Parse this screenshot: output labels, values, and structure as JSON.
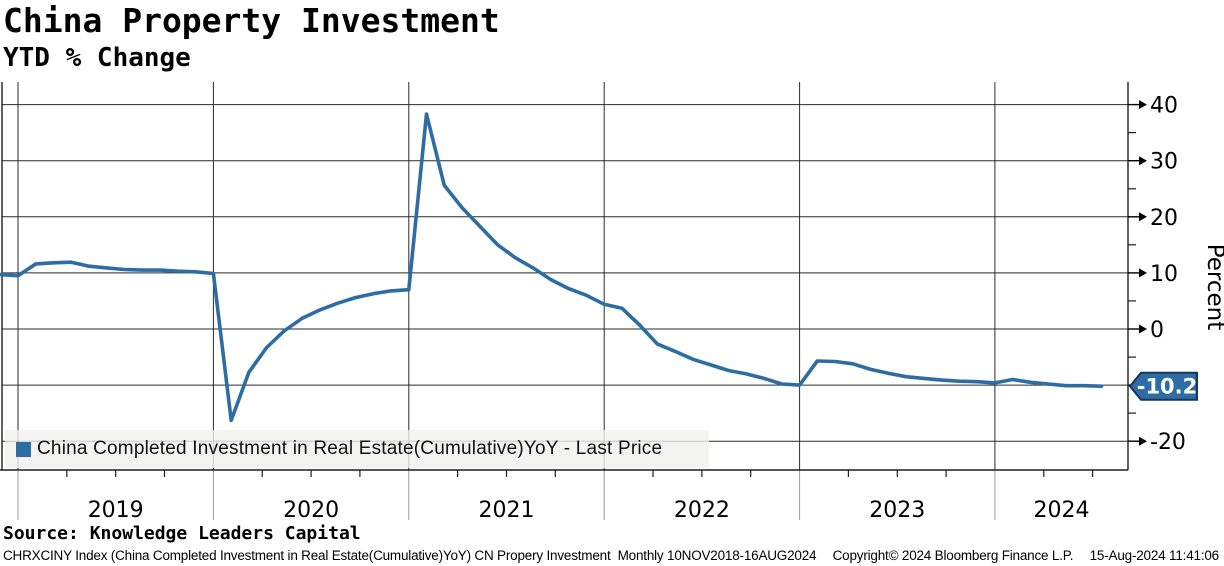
{
  "header": {
    "title": "China Property Investment",
    "subtitle": "YTD % Change"
  },
  "legend": {
    "label": "China Completed Investment in Real Estate(Cumulative)YoY - Last Price",
    "swatch_color": "#2e6da4"
  },
  "source_line": "Source: Knowledge Leaders Capital",
  "footer": {
    "left": "CHRXCINY Index (China Completed Investment in Real Estate(Cumulative)YoY) CN Propery Investment  Monthly 10NOV2018-16AUG2024",
    "copyright": "Copyright© 2024 Bloomberg Finance L.P.",
    "timestamp": "15-Aug-2024 11:41:06"
  },
  "chart_data": {
    "type": "line",
    "title": "China Property Investment",
    "subtitle": "YTD % Change",
    "ylabel": "Percent",
    "ylabel_side": "right",
    "xlabel": "",
    "grid": true,
    "legend_position": "bottom-left",
    "x_axis": {
      "year_labels": [
        "2019",
        "2020",
        "2021",
        "2022",
        "2023",
        "2024"
      ],
      "minor_ticks": "quarterly"
    },
    "y_axis": {
      "major_ticks": [
        40,
        30,
        20,
        10,
        0,
        -10,
        -20
      ],
      "minor_ticks": [
        35,
        25,
        15,
        5,
        -5,
        -15
      ],
      "ylim": [
        -25,
        44
      ]
    },
    "last_price": {
      "value": -10.2,
      "label": "-10.2",
      "fill": "#2e6da4",
      "border": "#16365c",
      "text_color": "#ffffff"
    },
    "series": [
      {
        "name": "China Completed Investment in Real Estate(Cumulative)YoY - Last Price",
        "color": "#2e6da4",
        "points": [
          [
            "Nov-2018",
            9.7
          ],
          [
            "Dec-2018",
            9.5
          ],
          [
            "Feb-2019",
            11.6
          ],
          [
            "Mar-2019",
            11.8
          ],
          [
            "Apr-2019",
            11.9
          ],
          [
            "May-2019",
            11.2
          ],
          [
            "Jun-2019",
            10.9
          ],
          [
            "Jul-2019",
            10.6
          ],
          [
            "Aug-2019",
            10.5
          ],
          [
            "Sep-2019",
            10.5
          ],
          [
            "Oct-2019",
            10.3
          ],
          [
            "Nov-2019",
            10.2
          ],
          [
            "Dec-2019",
            9.9
          ],
          [
            "Feb-2020",
            -16.3
          ],
          [
            "Mar-2020",
            -7.7
          ],
          [
            "Apr-2020",
            -3.3
          ],
          [
            "May-2020",
            -0.3
          ],
          [
            "Jun-2020",
            1.9
          ],
          [
            "Jul-2020",
            3.4
          ],
          [
            "Aug-2020",
            4.6
          ],
          [
            "Sep-2020",
            5.6
          ],
          [
            "Oct-2020",
            6.3
          ],
          [
            "Nov-2020",
            6.8
          ],
          [
            "Dec-2020",
            7.0
          ],
          [
            "Feb-2021",
            38.3
          ],
          [
            "Mar-2021",
            25.6
          ],
          [
            "Apr-2021",
            21.6
          ],
          [
            "May-2021",
            18.3
          ],
          [
            "Jun-2021",
            15.0
          ],
          [
            "Jul-2021",
            12.7
          ],
          [
            "Aug-2021",
            10.9
          ],
          [
            "Sep-2021",
            8.8
          ],
          [
            "Oct-2021",
            7.2
          ],
          [
            "Nov-2021",
            6.0
          ],
          [
            "Dec-2021",
            4.4
          ],
          [
            "Feb-2022",
            3.7
          ],
          [
            "Mar-2022",
            0.7
          ],
          [
            "Apr-2022",
            -2.7
          ],
          [
            "May-2022",
            -4.0
          ],
          [
            "Jun-2022",
            -5.4
          ],
          [
            "Jul-2022",
            -6.4
          ],
          [
            "Aug-2022",
            -7.4
          ],
          [
            "Sep-2022",
            -8.0
          ],
          [
            "Oct-2022",
            -8.8
          ],
          [
            "Nov-2022",
            -9.8
          ],
          [
            "Dec-2022",
            -10.0
          ],
          [
            "Feb-2023",
            -5.7
          ],
          [
            "Mar-2023",
            -5.8
          ],
          [
            "Apr-2023",
            -6.2
          ],
          [
            "May-2023",
            -7.2
          ],
          [
            "Jun-2023",
            -7.9
          ],
          [
            "Jul-2023",
            -8.5
          ],
          [
            "Aug-2023",
            -8.8
          ],
          [
            "Sep-2023",
            -9.1
          ],
          [
            "Oct-2023",
            -9.3
          ],
          [
            "Nov-2023",
            -9.4
          ],
          [
            "Dec-2023",
            -9.6
          ],
          [
            "Feb-2024",
            -9.0
          ],
          [
            "Mar-2024",
            -9.5
          ],
          [
            "Apr-2024",
            -9.8
          ],
          [
            "May-2024",
            -10.1
          ],
          [
            "Jun-2024",
            -10.1
          ],
          [
            "Jul-2024",
            -10.2
          ]
        ]
      }
    ]
  }
}
